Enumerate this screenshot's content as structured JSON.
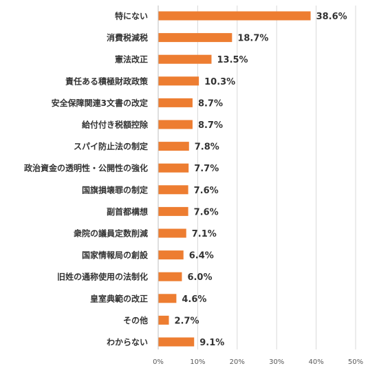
{
  "chart_data": {
    "type": "bar",
    "orientation": "horizontal",
    "categories": [
      "特にない",
      "消費税減税",
      "憲法改正",
      "責任ある積極財政政策",
      "安全保障関連3文書の改定",
      "給付付き税額控除",
      "スパイ防止法の制定",
      "政治資金の透明性・公開性の強化",
      "国旗損壊罪の制定",
      "副首都構想",
      "衆院の議員定数削減",
      "国家情報局の創設",
      "旧姓の通称使用の法制化",
      "皇室典範の改正",
      "その他",
      "わからない"
    ],
    "values": [
      38.6,
      18.7,
      13.5,
      10.3,
      8.7,
      8.7,
      7.8,
      7.7,
      7.6,
      7.6,
      7.1,
      6.4,
      6.0,
      4.6,
      2.7,
      9.1
    ],
    "value_labels": [
      "38.6%",
      "18.7%",
      "13.5%",
      "10.3%",
      "8.7%",
      "8.7%",
      "7.8%",
      "7.7%",
      "7.6%",
      "7.6%",
      "7.1%",
      "6.4%",
      "6.0%",
      "4.6%",
      "2.7%",
      "9.1%"
    ],
    "xlim": [
      0,
      50
    ],
    "xticks": [
      0,
      10,
      20,
      30,
      40,
      50
    ],
    "xtick_labels": [
      "0%",
      "10%",
      "20%",
      "30%",
      "40%",
      "50%"
    ],
    "title": "",
    "xlabel": "",
    "ylabel": "",
    "grid": true,
    "bar_color": "#ED7D31"
  }
}
